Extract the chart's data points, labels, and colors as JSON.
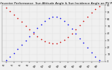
{
  "title": "Solar PV/Inverter Performance  Sun Altitude Angle & Sun Incidence Angle on PV Panels",
  "title_fontsize": 3.2,
  "bg_color": "#f0f0f0",
  "plot_bg_color": "#f0f0f0",
  "grid_color": "#bbbbbb",
  "blue_color": "#0000ee",
  "red_color": "#cc0000",
  "ylim": [
    0,
    80
  ],
  "yticks": [
    0,
    10,
    20,
    30,
    40,
    50,
    60,
    70,
    80
  ],
  "ytick_labels": [
    "0",
    "10",
    "20",
    "30",
    "40",
    "50",
    "60",
    "70",
    "80"
  ],
  "time_hours": [
    6.0,
    6.5,
    7.0,
    7.5,
    8.0,
    8.5,
    9.0,
    9.5,
    10.0,
    10.5,
    11.0,
    11.5,
    12.0,
    12.5,
    13.0,
    13.5,
    14.0,
    14.5,
    15.0,
    15.5,
    16.0,
    16.5,
    17.0,
    17.5,
    18.0
  ],
  "sun_altitude": [
    2,
    7,
    12,
    18,
    24,
    30,
    36,
    42,
    47,
    52,
    57,
    61,
    63,
    63,
    61,
    57,
    52,
    46,
    40,
    33,
    27,
    20,
    13,
    7,
    2
  ],
  "sun_incidence": [
    76,
    71,
    66,
    61,
    56,
    50,
    45,
    40,
    36,
    32,
    29,
    27,
    26,
    26,
    28,
    31,
    35,
    40,
    45,
    51,
    57,
    63,
    69,
    74,
    78
  ],
  "xlim": [
    5.5,
    18.8
  ],
  "xtick_hours": [
    6,
    7,
    8,
    9,
    10,
    11,
    12,
    13,
    14,
    15,
    16,
    17,
    18
  ],
  "xtick_labels": [
    "6h",
    "7h",
    "8h",
    "9h",
    "10h",
    "11h",
    "12h",
    "13h",
    "14h",
    "15h",
    "16h",
    "17h",
    "18h"
  ],
  "marker_size": 1.5,
  "tick_fontsize": 2.2,
  "xlabel_fontsize": 2.0
}
